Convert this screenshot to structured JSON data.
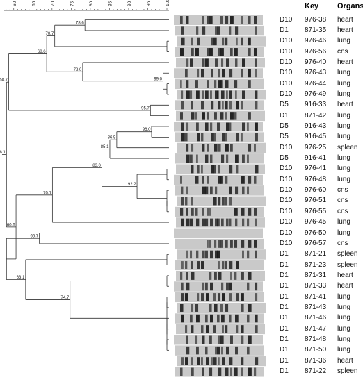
{
  "headers": {
    "key": "Key",
    "organs": "Organs"
  },
  "scale": {
    "ticks": [
      "60",
      "65",
      "70",
      "75",
      "80",
      "85",
      "90",
      "95",
      "100"
    ]
  },
  "rows": [
    {
      "day": "D10",
      "key": "976-38",
      "organ": "heart"
    },
    {
      "day": "D1",
      "key": "871-35",
      "organ": "heart"
    },
    {
      "day": "D10",
      "key": "976-46",
      "organ": "lung"
    },
    {
      "day": "D10",
      "key": "976-56",
      "organ": "cns"
    },
    {
      "day": "D10",
      "key": "976-40",
      "organ": "heart"
    },
    {
      "day": "D10",
      "key": "976-43",
      "organ": "lung"
    },
    {
      "day": "D10",
      "key": "976-44",
      "organ": "lung"
    },
    {
      "day": "D10",
      "key": "976-49",
      "organ": "lung"
    },
    {
      "day": "D5",
      "key": "916-33",
      "organ": "heart"
    },
    {
      "day": "D1",
      "key": "871-42",
      "organ": "lung"
    },
    {
      "day": "D5",
      "key": "916-43",
      "organ": "lung"
    },
    {
      "day": "D5",
      "key": "916-45",
      "organ": "lung"
    },
    {
      "day": "D10",
      "key": "976-25",
      "organ": "spleen"
    },
    {
      "day": "D5",
      "key": "916-41",
      "organ": "lung"
    },
    {
      "day": "D10",
      "key": "976-41",
      "organ": "lung"
    },
    {
      "day": "D10",
      "key": "976-48",
      "organ": "lung"
    },
    {
      "day": "D10",
      "key": "976-60",
      "organ": "cns"
    },
    {
      "day": "D10",
      "key": "976-51",
      "organ": "cns"
    },
    {
      "day": "D10",
      "key": "976-55",
      "organ": "cns"
    },
    {
      "day": "D10",
      "key": "976-45",
      "organ": "lung"
    },
    {
      "day": "D10",
      "key": "976-50",
      "organ": "lung"
    },
    {
      "day": "D10",
      "key": "976-57",
      "organ": "cns"
    },
    {
      "day": "D1",
      "key": "871-21",
      "organ": "spleen"
    },
    {
      "day": "D1",
      "key": "871-23",
      "organ": "spleen"
    },
    {
      "day": "D1",
      "key": "871-31",
      "organ": "heart"
    },
    {
      "day": "D1",
      "key": "871-33",
      "organ": "heart"
    },
    {
      "day": "D1",
      "key": "871-41",
      "organ": "lung"
    },
    {
      "day": "D1",
      "key": "871-43",
      "organ": "lung"
    },
    {
      "day": "D1",
      "key": "871-46",
      "organ": "lung"
    },
    {
      "day": "D1",
      "key": "871-47",
      "organ": "lung"
    },
    {
      "day": "D1",
      "key": "871-48",
      "organ": "lung"
    },
    {
      "day": "D1",
      "key": "871-50",
      "organ": "lung"
    },
    {
      "day": "D1",
      "key": "871-36",
      "organ": "heart"
    },
    {
      "day": "D1",
      "key": "871-22",
      "organ": "spleen"
    }
  ],
  "node_values": [
    "78.6",
    "70.7",
    "68.6",
    "99.0",
    "78.0",
    "58.7",
    "95.7",
    "96.0",
    "86.9",
    "85.1",
    "83.0",
    "92.2",
    "70.1",
    "60.6",
    "66.7",
    "63.1",
    "74.7",
    "58.1",
    "64.7"
  ],
  "colors": {
    "line": "#333333",
    "band_dark": "#1a1a1a",
    "lane_bg": "#c9c9c9"
  }
}
